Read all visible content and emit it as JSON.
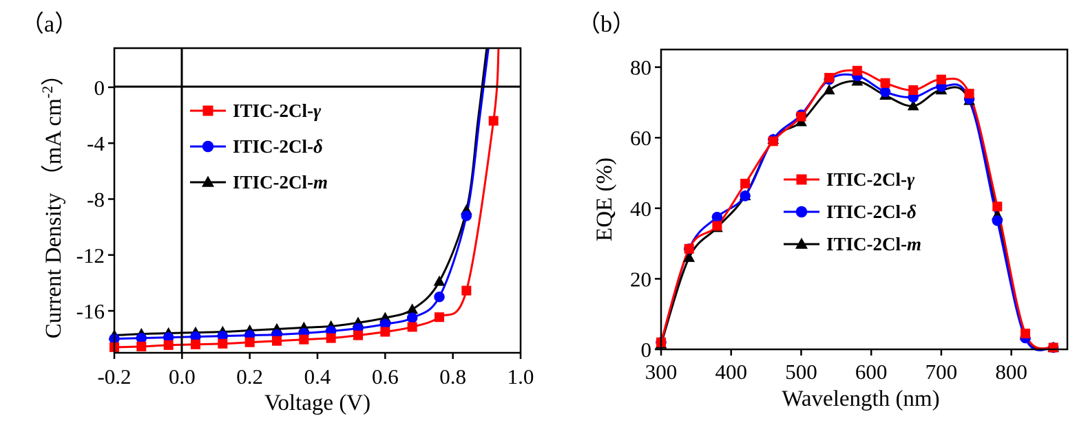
{
  "colors": {
    "ITIC-2Cl-γ": "#ff0000",
    "ITIC-2Cl-δ": "#0000ff",
    "ITIC-2Cl-m": "#000000"
  },
  "chart_data": [
    {
      "type": "line",
      "panel_label": "（a）",
      "xlabel": "Voltage (V)",
      "ylabel": "Current Density （mA cm",
      "ylabel_sup": "-2",
      "ylabel_end": "）",
      "xlim": [
        -0.2,
        1.0
      ],
      "ylim": [
        -19.0,
        2.8
      ],
      "x_ticks": [
        "-0.2",
        "0.0",
        "0.2",
        "0.4",
        "0.6",
        "0.8",
        "1.0"
      ],
      "y_ticks": [
        "0",
        "-4",
        "-8",
        "-12",
        "-16"
      ],
      "legend_position": "top-left",
      "series": [
        {
          "name_base": "ITIC-2Cl-",
          "name_sym": "γ",
          "marker": "square",
          "color": "#ff0000",
          "points": [
            [
              -0.2,
              -18.6
            ],
            [
              -0.12,
              -18.55
            ],
            [
              -0.04,
              -18.45
            ],
            [
              0.04,
              -18.4
            ],
            [
              0.12,
              -18.35
            ],
            [
              0.2,
              -18.25
            ],
            [
              0.28,
              -18.15
            ],
            [
              0.36,
              -18.05
            ],
            [
              0.44,
              -17.95
            ],
            [
              0.52,
              -17.75
            ],
            [
              0.6,
              -17.5
            ],
            [
              0.68,
              -17.15
            ],
            [
              0.76,
              -16.45
            ],
            [
              0.84,
              -14.55
            ],
            [
              0.92,
              -2.4
            ]
          ],
          "curve": [
            [
              0.92,
              -2.4
            ],
            [
              0.935,
              2.8
            ]
          ]
        },
        {
          "name_base": "ITIC-2Cl-",
          "name_sym": "δ",
          "marker": "circle",
          "color": "#0000ff",
          "points": [
            [
              -0.2,
              -18.0
            ],
            [
              -0.12,
              -17.95
            ],
            [
              -0.04,
              -17.9
            ],
            [
              0.04,
              -17.85
            ],
            [
              0.12,
              -17.8
            ],
            [
              0.2,
              -17.75
            ],
            [
              0.28,
              -17.7
            ],
            [
              0.36,
              -17.6
            ],
            [
              0.44,
              -17.45
            ],
            [
              0.52,
              -17.25
            ],
            [
              0.6,
              -16.95
            ],
            [
              0.68,
              -16.5
            ],
            [
              0.76,
              -15.0
            ],
            [
              0.84,
              -9.2
            ]
          ],
          "curve": [
            [
              0.84,
              -9.2
            ],
            [
              0.88,
              -2.0
            ],
            [
              0.905,
              2.8
            ]
          ]
        },
        {
          "name_base": "ITIC-2Cl-",
          "name_sym": "m",
          "marker": "triangle",
          "color": "#000000",
          "points": [
            [
              -0.2,
              -17.75
            ],
            [
              -0.12,
              -17.65
            ],
            [
              -0.04,
              -17.6
            ],
            [
              0.04,
              -17.55
            ],
            [
              0.12,
              -17.5
            ],
            [
              0.2,
              -17.4
            ],
            [
              0.28,
              -17.3
            ],
            [
              0.36,
              -17.2
            ],
            [
              0.44,
              -17.1
            ],
            [
              0.52,
              -16.85
            ],
            [
              0.6,
              -16.5
            ],
            [
              0.68,
              -15.9
            ],
            [
              0.76,
              -13.9
            ],
            [
              0.84,
              -8.8
            ]
          ],
          "curve": [
            [
              0.84,
              -8.8
            ],
            [
              0.875,
              -2.2
            ],
            [
              0.9,
              2.8
            ]
          ]
        }
      ]
    },
    {
      "type": "line",
      "panel_label": "（b）",
      "xlabel": "Wavelength (nm)",
      "ylabel": "EQE (%)",
      "xlim": [
        300,
        880
      ],
      "ylim": [
        0,
        85
      ],
      "x_ticks": [
        "300",
        "400",
        "500",
        "600",
        "700",
        "800"
      ],
      "y_ticks": [
        "0",
        "20",
        "40",
        "60",
        "80"
      ],
      "legend_position": "center-left",
      "series": [
        {
          "name_base": "ITIC-2Cl-",
          "name_sym": "γ",
          "marker": "square",
          "color": "#ff0000",
          "points": [
            [
              300,
              2
            ],
            [
              340,
              28.5
            ],
            [
              380,
              35
            ],
            [
              420,
              47
            ],
            [
              460,
              59
            ],
            [
              500,
              66
            ],
            [
              540,
              77
            ],
            [
              580,
              79
            ],
            [
              620,
              75.5
            ],
            [
              660,
              73.5
            ],
            [
              700,
              76.5
            ],
            [
              740,
              72.5
            ],
            [
              780,
              40.5
            ],
            [
              820,
              4.5
            ],
            [
              860,
              0.5
            ]
          ]
        },
        {
          "name_base": "ITIC-2Cl-",
          "name_sym": "δ",
          "marker": "circle",
          "color": "#0000ff",
          "points": [
            [
              300,
              2
            ],
            [
              340,
              28.5
            ],
            [
              380,
              37.5
            ],
            [
              420,
              43.5
            ],
            [
              460,
              59.5
            ],
            [
              500,
              66.5
            ],
            [
              540,
              76.5
            ],
            [
              580,
              77.5
            ],
            [
              620,
              73
            ],
            [
              660,
              71.5
            ],
            [
              700,
              74.5
            ],
            [
              740,
              71
            ],
            [
              780,
              36.5
            ],
            [
              820,
              3.2
            ],
            [
              860,
              0.5
            ]
          ]
        },
        {
          "name_base": "ITIC-2Cl-",
          "name_sym": "m",
          "marker": "triangle",
          "color": "#000000",
          "points": [
            [
              300,
              1.5
            ],
            [
              340,
              26
            ],
            [
              380,
              34.5
            ],
            [
              420,
              43.5
            ],
            [
              460,
              59.5
            ],
            [
              500,
              64.5
            ],
            [
              540,
              73.5
            ],
            [
              580,
              76
            ],
            [
              620,
              72
            ],
            [
              660,
              69
            ],
            [
              700,
              73.5
            ],
            [
              740,
              70.5
            ],
            [
              780,
              38
            ],
            [
              820,
              4
            ],
            [
              860,
              0.5
            ]
          ]
        }
      ]
    }
  ]
}
